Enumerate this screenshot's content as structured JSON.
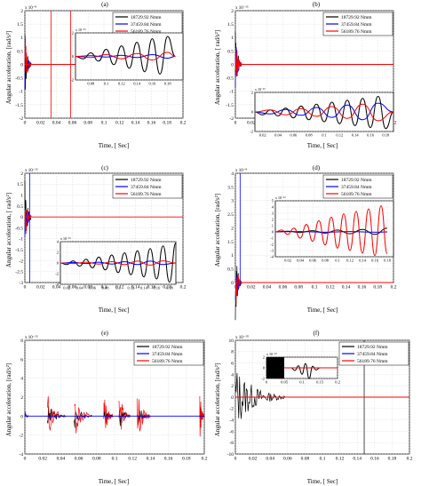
{
  "colors": {
    "black": "#000000",
    "blue": "#0000ff",
    "red": "#ff0000"
  },
  "chart_data": [
    {
      "type": "line",
      "panel_label": "(a)",
      "xlabel": "Time, [ Sec]",
      "ylabel": "Angular acceleration, [rad/s²]",
      "exponent": "x 10⁻⁸",
      "xlim": [
        0,
        0.2
      ],
      "ylim": [
        -2,
        2
      ],
      "xticks": [
        0,
        0.02,
        0.04,
        0.06,
        0.08,
        0.1,
        0.12,
        0.14,
        0.16,
        0.18,
        0.2
      ],
      "yticks": [
        -2,
        -1.5,
        -1,
        -0.5,
        0,
        0.5,
        1,
        1.5,
        2
      ],
      "legend": [
        "18729.92 Nmm",
        "37459.84 Nmm",
        "56189.76 Nmm"
      ],
      "inset": {
        "exponent": "x 10⁻¹⁵",
        "xlim": [
          0.06,
          0.2
        ],
        "ylim": [
          -2,
          2
        ],
        "xticks": [
          0.08,
          0.1,
          0.12,
          0.14,
          0.16,
          0.18
        ],
        "yticks": [
          -2,
          0,
          2
        ],
        "series": [
          {
            "color": "black",
            "x": [
              0.06,
              0.07,
              0.08,
              0.09,
              0.1,
              0.11,
              0.12,
              0.13,
              0.14,
              0.15,
              0.16,
              0.17,
              0.18,
              0.19
            ],
            "y": [
              0,
              -0.2,
              0.3,
              -0.4,
              0.6,
              -0.7,
              0.9,
              -1.0,
              1.2,
              -1.3,
              1.5,
              -1.5,
              1.7,
              0
            ]
          },
          {
            "color": "blue",
            "x": [
              0.06,
              0.08,
              0.1,
              0.12,
              0.14,
              0.16,
              0.18,
              0.19
            ],
            "y": [
              0,
              0.05,
              -0.05,
              0.1,
              -0.1,
              0.15,
              -0.15,
              0
            ]
          },
          {
            "color": "red",
            "x": [
              0.06,
              0.08,
              0.1,
              0.12,
              0.14,
              0.16,
              0.18,
              0.19
            ],
            "y": [
              0,
              -0.1,
              0.15,
              -0.2,
              0.25,
              -0.3,
              0.35,
              0
            ]
          }
        ]
      }
    },
    {
      "type": "line",
      "panel_label": "(b)",
      "xlabel": "Time, [ Sec]",
      "ylabel": "Angular acceleration, [ rad/s²]",
      "exponent": "x 10⁻¹⁵",
      "xlim": [
        0,
        0.2
      ],
      "ylim": [
        -2,
        2
      ],
      "xticks": [
        0,
        0.02,
        0.04,
        0.06,
        0.08,
        0.1,
        0.12,
        0.14,
        0.16,
        0.18,
        0.2
      ],
      "yticks": [
        -2,
        -1.5,
        -1,
        -0.5,
        0,
        0.5,
        1,
        1.5,
        2
      ],
      "legend": [
        "18729.92 Nmm",
        "37459.84 Nmm",
        "56189.76 Nmm"
      ],
      "inset": {
        "exponent": "x 10⁻¹⁵",
        "xlim": [
          0.01,
          0.19
        ],
        "ylim": [
          -2,
          2
        ],
        "xticks": [
          0.02,
          0.04,
          0.06,
          0.08,
          0.1,
          0.12,
          0.14,
          0.16,
          0.18
        ],
        "yticks": [
          -2,
          0,
          2
        ],
        "series": [
          {
            "color": "black",
            "x": [
              0.01,
              0.02,
              0.03,
              0.04,
              0.05,
              0.06,
              0.07,
              0.08,
              0.09,
              0.1,
              0.11,
              0.12,
              0.13,
              0.14,
              0.15,
              0.16,
              0.17,
              0.18,
              0.19
            ],
            "y": [
              0,
              -0.3,
              0.2,
              -0.4,
              0.4,
              -0.6,
              0.6,
              -0.8,
              0.8,
              -1.0,
              1.0,
              -1.2,
              1.2,
              -1.4,
              1.4,
              -1.6,
              1.6,
              -1.7,
              0
            ]
          },
          {
            "color": "blue",
            "x": [
              0.01,
              0.03,
              0.05,
              0.07,
              0.09,
              0.11,
              0.13,
              0.15,
              0.17,
              0.19
            ],
            "y": [
              0,
              -0.2,
              0.25,
              -0.35,
              0.45,
              -0.55,
              0.7,
              -0.8,
              0.9,
              0
            ]
          },
          {
            "color": "red",
            "x": [
              0.01,
              0.03,
              0.05,
              0.07,
              0.09,
              0.11,
              0.13,
              0.15,
              0.17,
              0.19
            ],
            "y": [
              0,
              0.2,
              -0.3,
              0.35,
              -0.45,
              0.55,
              -0.65,
              0.8,
              -0.9,
              0
            ]
          }
        ]
      }
    },
    {
      "type": "line",
      "panel_label": "(c)",
      "xlabel": "Time, [ Sec]",
      "ylabel": "Angular acceleration, [ rad/s²]",
      "exponent": "x 10⁻¹⁵",
      "xlim": [
        0,
        0.2
      ],
      "ylim": [
        -3,
        2
      ],
      "xticks": [
        0,
        0.02,
        0.04,
        0.06,
        0.08,
        0.1,
        0.12,
        0.14,
        0.16,
        0.18,
        0.2
      ],
      "yticks": [
        -3,
        -2.5,
        -2,
        -1.5,
        -1,
        -0.5,
        0,
        0.5,
        1,
        1.5,
        2
      ],
      "legend": [
        "18729.92 Nmm",
        "37459.84 Nmm",
        "56189.76 Nmm"
      ],
      "inset": {
        "exponent": "x 10⁻¹⁵",
        "xlim": [
          0.01,
          0.19
        ],
        "ylim": [
          -4,
          4
        ],
        "xticks": [
          0.02,
          0.04,
          0.06,
          0.08,
          0.1,
          0.12,
          0.14,
          0.16,
          0.18
        ],
        "yticks": [
          -4,
          -2,
          0,
          2,
          4
        ],
        "series": [
          {
            "color": "black",
            "x": [
              0.01,
              0.02,
              0.03,
              0.04,
              0.05,
              0.06,
              0.07,
              0.08,
              0.09,
              0.1,
              0.11,
              0.12,
              0.13,
              0.14,
              0.15,
              0.16,
              0.17,
              0.18,
              0.19
            ],
            "y": [
              0,
              -0.3,
              0.4,
              -0.6,
              0.7,
              -0.9,
              1.1,
              -1.3,
              1.5,
              -1.8,
              1.9,
              -2.2,
              2.3,
              -2.6,
              2.7,
              -3.0,
              3.2,
              -3.6,
              3.8
            ]
          },
          {
            "color": "blue",
            "x": [
              0.01,
              0.03,
              0.05,
              0.07,
              0.09,
              0.11,
              0.13,
              0.15,
              0.17,
              0.19
            ],
            "y": [
              0,
              0.1,
              -0.1,
              0.15,
              -0.2,
              0.25,
              -0.3,
              0.35,
              -0.3,
              0
            ]
          },
          {
            "color": "red",
            "x": [
              0.01,
              0.03,
              0.05,
              0.07,
              0.09,
              0.11,
              0.13,
              0.15,
              0.17,
              0.19
            ],
            "y": [
              0,
              -0.1,
              0.15,
              -0.2,
              0.25,
              -0.3,
              0.35,
              -0.4,
              0.4,
              0
            ]
          }
        ]
      }
    },
    {
      "type": "line",
      "panel_label": "(d)",
      "xlabel": "Time, [ Sec]",
      "ylabel": "Angular acceleration, [rad/s²]",
      "exponent": "x 10⁻⁸",
      "xlim": [
        0,
        0.2
      ],
      "ylim": [
        0,
        4
      ],
      "xticks": [
        0,
        0.02,
        0.04,
        0.06,
        0.08,
        0.1,
        0.12,
        0.14,
        0.16,
        0.18,
        0.2
      ],
      "yticks": [
        0,
        0.5,
        1,
        1.5,
        2,
        2.5,
        3,
        3.5,
        4
      ],
      "legend": [
        "18729.92 Nmm",
        "37459.84 Nmm",
        "56189.76 Nmm"
      ],
      "inset": {
        "exponent": "x 10⁻¹³",
        "xlim": [
          0,
          0.19
        ],
        "ylim": [
          -4,
          5
        ],
        "xticks": [
          0.02,
          0.04,
          0.06,
          0.08,
          0.1,
          0.12,
          0.14,
          0.16,
          0.18
        ],
        "yticks": [
          -4,
          -3,
          -2,
          -1,
          0,
          1,
          2,
          3,
          4,
          5
        ],
        "series": [
          {
            "color": "black",
            "x": [
              0,
              0.02,
              0.04,
              0.06,
              0.08,
              0.1,
              0.12,
              0.14,
              0.16,
              0.18
            ],
            "y": [
              0,
              0.1,
              -0.1,
              0.2,
              -0.2,
              0.3,
              -0.3,
              0.4,
              -0.4,
              0.6
            ]
          },
          {
            "color": "blue",
            "x": [
              0,
              0.04,
              0.08,
              0.12,
              0.16,
              0.18
            ],
            "y": [
              0,
              0.05,
              -0.05,
              0.05,
              -0.05,
              0
            ]
          },
          {
            "color": "red",
            "x": [
              0,
              0.01,
              0.02,
              0.03,
              0.04,
              0.05,
              0.06,
              0.07,
              0.08,
              0.09,
              0.1,
              0.11,
              0.12,
              0.13,
              0.14,
              0.15,
              0.16,
              0.17,
              0.18
            ],
            "y": [
              0,
              0.3,
              -0.4,
              0.6,
              -1.0,
              1.2,
              -1.5,
              1.8,
              -2.1,
              2.4,
              -2.6,
              2.9,
              -3.0,
              3.3,
              -3.4,
              3.7,
              -3.8,
              4.2,
              -3.5
            ]
          }
        ]
      }
    },
    {
      "type": "line",
      "panel_label": "(e)",
      "xlabel": "Time, [ Sec]",
      "ylabel": "Angular acceleration, [rad/s²]",
      "exponent": "x 10⁻¹⁵",
      "xlim": [
        0,
        0.2
      ],
      "ylim": [
        -4,
        8
      ],
      "xticks": [
        0,
        0.02,
        0.04,
        0.06,
        0.08,
        0.1,
        0.12,
        0.14,
        0.16,
        0.18,
        0.2
      ],
      "yticks": [
        -4,
        -2,
        0,
        2,
        4,
        6,
        8
      ],
      "legend": [
        "18729.92 Nmm",
        "37459.84 Nmm",
        "56189.76 Nmm"
      ]
    },
    {
      "type": "line",
      "panel_label": "(f)",
      "xlabel": "Time, [ Sec]",
      "ylabel": "Angular acceleration, [rad/s²]",
      "exponent": "x 10⁻¹⁰",
      "xlim": [
        0,
        0.2
      ],
      "ylim": [
        -10,
        10
      ],
      "xticks": [
        0,
        0.02,
        0.04,
        0.06,
        0.08,
        0.1,
        0.12,
        0.14,
        0.16,
        0.18,
        0.2
      ],
      "yticks": [
        -10,
        -8,
        -6,
        -4,
        -2,
        0,
        2,
        4,
        6,
        8,
        10
      ],
      "legend": [
        "18729.92 Nmm",
        "37459.84 Nmm",
        "56189.76 Nmm"
      ],
      "inset": {
        "exponent": "x 10⁻¹⁰",
        "xlim": [
          0,
          0.2
        ],
        "ylim": [
          -2,
          2
        ],
        "xticks": [
          0,
          0.05,
          0.1,
          0.15,
          0.2
        ],
        "yticks": [
          -2,
          0,
          2
        ],
        "series": [
          {
            "color": "black",
            "x": [
              0.07,
              0.08,
              0.09,
              0.1,
              0.11,
              0.12,
              0.13,
              0.14,
              0.15
            ],
            "y": [
              0,
              -0.5,
              0.4,
              -1.2,
              0.8,
              -2,
              0.3,
              -0.4,
              0
            ]
          },
          {
            "color": "red",
            "x": [
              0.05,
              0.08,
              0.11,
              0.14,
              0.17,
              0.2
            ],
            "y": [
              0,
              0,
              0,
              0,
              0,
              0
            ]
          }
        ]
      }
    }
  ]
}
